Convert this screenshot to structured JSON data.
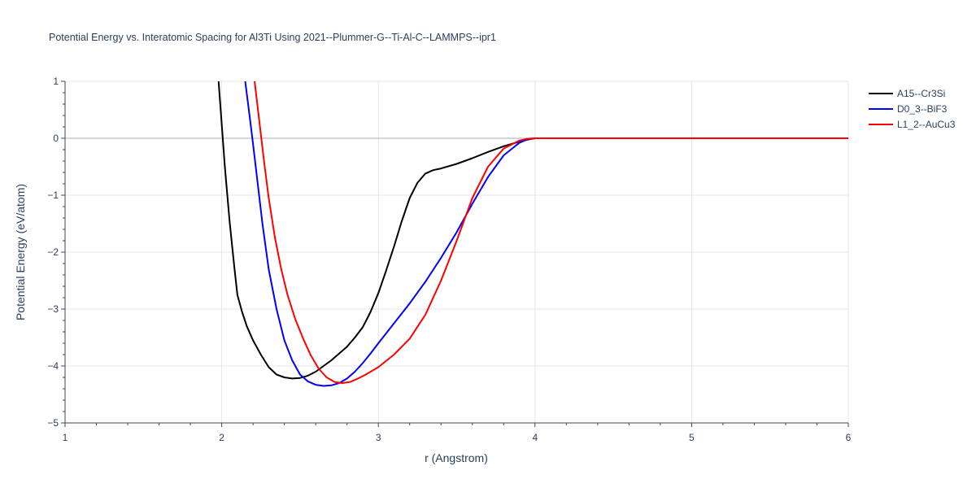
{
  "chart_data": {
    "type": "line",
    "title": "Potential Energy vs. Interatomic Spacing for Al3Ti Using 2021--Plummer-G--Ti-Al-C--LAMMPS--ipr1",
    "xlabel": "r (Angstrom)",
    "ylabel": "Potential Energy (eV/atom)",
    "xlim": [
      1,
      6
    ],
    "ylim": [
      -5,
      1
    ],
    "xticks": [
      1,
      2,
      3,
      4,
      5,
      6
    ],
    "yticks": [
      1,
      0,
      -1,
      -2,
      -3,
      -4,
      -5
    ],
    "ytick_labels": [
      "1",
      "0",
      "−1",
      "−2",
      "−3",
      "−4",
      "−5"
    ],
    "grid": true,
    "legend_position": "top-right",
    "series": [
      {
        "name": "A15--Cr3Si",
        "color": "#000000",
        "x": [
          1.98,
          2.0,
          2.02,
          2.05,
          2.08,
          2.1,
          2.13,
          2.16,
          2.2,
          2.25,
          2.3,
          2.35,
          2.4,
          2.45,
          2.5,
          2.55,
          2.6,
          2.7,
          2.8,
          2.85,
          2.9,
          2.95,
          3.0,
          3.05,
          3.1,
          3.15,
          3.2,
          3.25,
          3.3,
          3.35,
          3.4,
          3.5,
          3.6,
          3.7,
          3.8,
          3.9,
          3.96,
          4.0,
          4.05,
          6.0
        ],
        "y": [
          1.0,
          0.25,
          -0.5,
          -1.45,
          -2.25,
          -2.75,
          -3.05,
          -3.3,
          -3.55,
          -3.8,
          -4.02,
          -4.15,
          -4.2,
          -4.22,
          -4.21,
          -4.17,
          -4.1,
          -3.9,
          -3.66,
          -3.5,
          -3.32,
          -3.05,
          -2.72,
          -2.32,
          -1.9,
          -1.45,
          -1.05,
          -0.78,
          -0.62,
          -0.56,
          -0.53,
          -0.45,
          -0.35,
          -0.24,
          -0.14,
          -0.06,
          -0.02,
          0.0,
          0.0,
          0.0
        ]
      },
      {
        "name": "D0_3--BiF3",
        "color": "#0000ff",
        "x": [
          2.15,
          2.18,
          2.2,
          2.23,
          2.26,
          2.3,
          2.35,
          2.4,
          2.45,
          2.5,
          2.55,
          2.6,
          2.65,
          2.7,
          2.75,
          2.8,
          2.85,
          2.9,
          2.95,
          3.0,
          3.1,
          3.2,
          3.3,
          3.4,
          3.5,
          3.6,
          3.7,
          3.8,
          3.9,
          3.95,
          4.0,
          4.05,
          6.0
        ],
        "y": [
          1.0,
          0.35,
          -0.1,
          -0.8,
          -1.5,
          -2.3,
          -3.0,
          -3.55,
          -3.9,
          -4.15,
          -4.27,
          -4.33,
          -4.35,
          -4.34,
          -4.3,
          -4.22,
          -4.1,
          -3.95,
          -3.78,
          -3.6,
          -3.25,
          -2.9,
          -2.52,
          -2.1,
          -1.65,
          -1.15,
          -0.68,
          -0.3,
          -0.08,
          -0.02,
          0.0,
          0.0,
          0.0
        ]
      },
      {
        "name": "L1_2--AuCu3",
        "color": "#ff0000",
        "x": [
          2.21,
          2.24,
          2.27,
          2.3,
          2.34,
          2.38,
          2.42,
          2.47,
          2.52,
          2.57,
          2.62,
          2.67,
          2.72,
          2.77,
          2.82,
          2.87,
          2.92,
          3.0,
          3.1,
          3.2,
          3.3,
          3.4,
          3.5,
          3.6,
          3.7,
          3.8,
          3.9,
          3.95,
          4.0,
          4.05,
          6.0
        ],
        "y": [
          1.0,
          0.3,
          -0.4,
          -1.05,
          -1.75,
          -2.3,
          -2.75,
          -3.18,
          -3.52,
          -3.82,
          -4.05,
          -4.2,
          -4.28,
          -4.3,
          -4.28,
          -4.22,
          -4.15,
          -4.02,
          -3.8,
          -3.52,
          -3.1,
          -2.5,
          -1.8,
          -1.05,
          -0.5,
          -0.18,
          -0.04,
          -0.01,
          0.0,
          0.0,
          0.0
        ]
      }
    ]
  }
}
